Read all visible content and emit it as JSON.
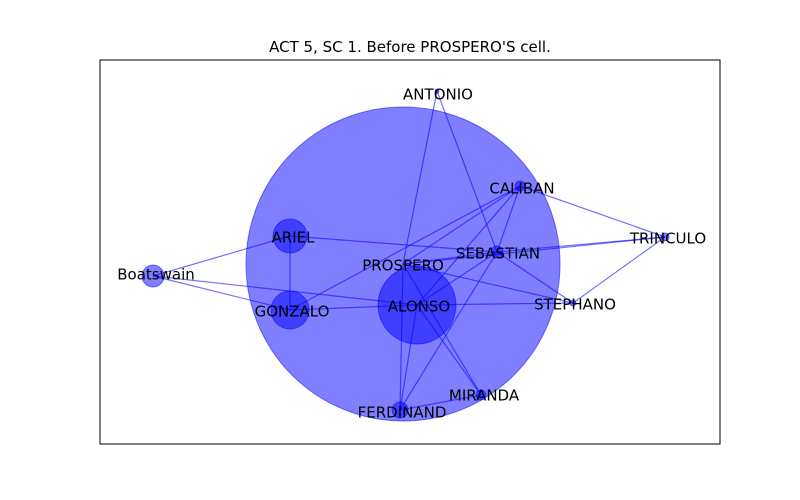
{
  "figure": {
    "title": "ACT 5, SC 1. Before PROSPERO'S cell.",
    "node_color": "#0000ff",
    "node_opacity": 0.5,
    "edge_color": "#0000ff",
    "edge_opacity": 0.55,
    "frame_color": "#000000"
  },
  "network": {
    "nodes": [
      {
        "id": "prospero",
        "label": "PROSPERO",
        "icon": "node-circle"
      },
      {
        "id": "alonso",
        "label": "ALONSO",
        "icon": "node-circle"
      },
      {
        "id": "ariel",
        "label": "ARIEL",
        "icon": "node-circle"
      },
      {
        "id": "gonzalo",
        "label": "GONZALO",
        "icon": "node-circle"
      },
      {
        "id": "boatswain",
        "label": "Boatswain",
        "icon": "node-circle"
      },
      {
        "id": "antonio",
        "label": "ANTONIO",
        "icon": "node-circle"
      },
      {
        "id": "caliban",
        "label": "CALIBAN",
        "icon": "node-circle"
      },
      {
        "id": "sebastian",
        "label": "SEBASTIAN",
        "icon": "node-circle"
      },
      {
        "id": "trinculo",
        "label": "TRINCULO",
        "icon": "node-circle"
      },
      {
        "id": "stephano",
        "label": "STEPHANO",
        "icon": "node-circle"
      },
      {
        "id": "miranda",
        "label": "MIRANDA",
        "icon": "node-circle"
      },
      {
        "id": "ferdinand",
        "label": "FERDINAND",
        "icon": "node-circle"
      }
    ],
    "edges": [
      [
        "boatswain",
        "ariel"
      ],
      [
        "boatswain",
        "gonzalo"
      ],
      [
        "boatswain",
        "alonso"
      ],
      [
        "ariel",
        "gonzalo"
      ],
      [
        "ariel",
        "sebastian"
      ],
      [
        "gonzalo",
        "alonso"
      ],
      [
        "gonzalo",
        "caliban"
      ],
      [
        "antonio",
        "prospero"
      ],
      [
        "antonio",
        "sebastian"
      ],
      [
        "caliban",
        "prospero"
      ],
      [
        "caliban",
        "sebastian"
      ],
      [
        "caliban",
        "alonso"
      ],
      [
        "caliban",
        "trinculo"
      ],
      [
        "prospero",
        "sebastian"
      ],
      [
        "prospero",
        "stephano"
      ],
      [
        "prospero",
        "miranda"
      ],
      [
        "prospero",
        "ferdinand"
      ],
      [
        "prospero",
        "trinculo"
      ],
      [
        "sebastian",
        "trinculo"
      ],
      [
        "sebastian",
        "alonso"
      ],
      [
        "sebastian",
        "ferdinand"
      ],
      [
        "sebastian",
        "stephano"
      ],
      [
        "alonso",
        "stephano"
      ],
      [
        "alonso",
        "miranda"
      ],
      [
        "alonso",
        "ferdinand"
      ],
      [
        "trinculo",
        "stephano"
      ],
      [
        "ferdinand",
        "miranda"
      ]
    ]
  }
}
